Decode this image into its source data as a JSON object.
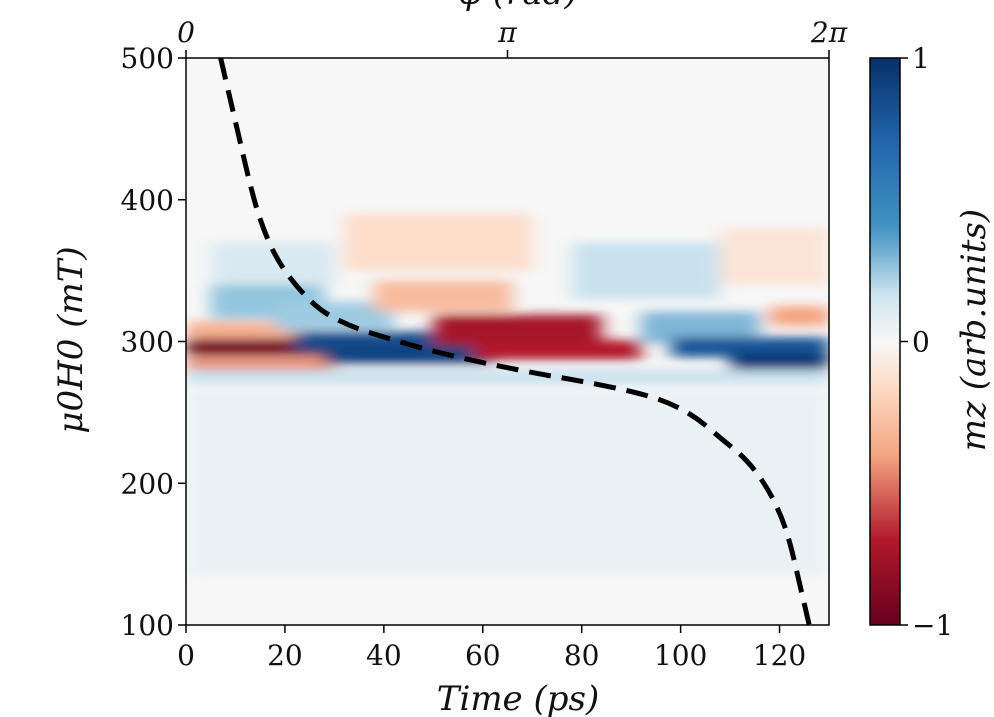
{
  "chart_data": {
    "type": "heatmap",
    "xlabel": "Time (ps)",
    "ylabel": "μ0H0 (mT)",
    "top_xlabel": "φ (rad)",
    "colorbar_label": "mz (arb.units)",
    "xlim": [
      0,
      130
    ],
    "ylim": [
      100,
      500
    ],
    "x_ticks": [
      0,
      20,
      40,
      60,
      80,
      100,
      120
    ],
    "y_ticks": [
      100,
      200,
      300,
      400,
      500
    ],
    "top_ticks": [
      {
        "x": 0,
        "label": "0"
      },
      {
        "x": 65,
        "label": "π"
      },
      {
        "x": 130,
        "label": "2π"
      }
    ],
    "colorbar": {
      "range": [
        -1,
        1
      ],
      "ticks": [
        {
          "value": 1,
          "label": "1"
        },
        {
          "value": 0,
          "label": "0"
        },
        {
          "value": -1,
          "label": "−1"
        }
      ],
      "colors": {
        "max": "#08306b",
        "mid": "#f7f7f7",
        "min": "#67001f"
      }
    },
    "dashed_curve": {
      "color": "#000000",
      "points": [
        [
          7,
          500
        ],
        [
          9,
          470
        ],
        [
          11,
          440
        ],
        [
          13,
          410
        ],
        [
          15,
          385
        ],
        [
          18,
          360
        ],
        [
          22,
          340
        ],
        [
          27,
          322
        ],
        [
          33,
          311
        ],
        [
          40,
          303
        ],
        [
          50,
          293
        ],
        [
          60,
          285
        ],
        [
          70,
          278
        ],
        [
          80,
          272
        ],
        [
          90,
          265
        ],
        [
          97,
          258
        ],
        [
          103,
          247
        ],
        [
          108,
          232
        ],
        [
          113,
          218
        ],
        [
          117,
          200
        ],
        [
          120,
          180
        ],
        [
          122,
          160
        ],
        [
          124,
          130
        ],
        [
          126,
          100
        ]
      ]
    },
    "features": [
      {
        "x0": 0,
        "x1": 30,
        "y": 296,
        "h": 12,
        "value": -0.95
      },
      {
        "x0": 0,
        "x1": 22,
        "y": 308,
        "h": 12,
        "value": -0.35
      },
      {
        "x0": 0,
        "x1": 30,
        "y": 284,
        "h": 10,
        "value": -0.45
      },
      {
        "x0": 5,
        "x1": 28,
        "y": 330,
        "h": 28,
        "value": 0.4
      },
      {
        "x0": 5,
        "x1": 30,
        "y": 355,
        "h": 30,
        "value": 0.12
      },
      {
        "x0": 22,
        "x1": 58,
        "y": 300,
        "h": 14,
        "value": 0.85
      },
      {
        "x0": 28,
        "x1": 62,
        "y": 290,
        "h": 12,
        "value": 0.9
      },
      {
        "x0": 18,
        "x1": 42,
        "y": 318,
        "h": 20,
        "value": 0.35
      },
      {
        "x0": 50,
        "x1": 84,
        "y": 308,
        "h": 22,
        "value": -0.75
      },
      {
        "x0": 58,
        "x1": 92,
        "y": 294,
        "h": 14,
        "value": -0.7
      },
      {
        "x0": 38,
        "x1": 66,
        "y": 332,
        "h": 22,
        "value": -0.3
      },
      {
        "x0": 32,
        "x1": 70,
        "y": 370,
        "h": 40,
        "value": -0.14
      },
      {
        "x0": 92,
        "x1": 116,
        "y": 310,
        "h": 22,
        "value": 0.45
      },
      {
        "x0": 98,
        "x1": 130,
        "y": 296,
        "h": 14,
        "value": 0.8
      },
      {
        "x0": 110,
        "x1": 130,
        "y": 286,
        "h": 12,
        "value": 0.95
      },
      {
        "x0": 78,
        "x1": 108,
        "y": 350,
        "h": 40,
        "value": 0.18
      },
      {
        "x0": 118,
        "x1": 130,
        "y": 318,
        "h": 14,
        "value": -0.4
      },
      {
        "x0": 108,
        "x1": 130,
        "y": 360,
        "h": 40,
        "value": -0.1
      },
      {
        "x0": 0,
        "x1": 130,
        "y": 275,
        "h": 10,
        "value": 0.18
      },
      {
        "x0": 0,
        "x1": 130,
        "y": 200,
        "h": 130,
        "value": 0.05
      }
    ]
  }
}
